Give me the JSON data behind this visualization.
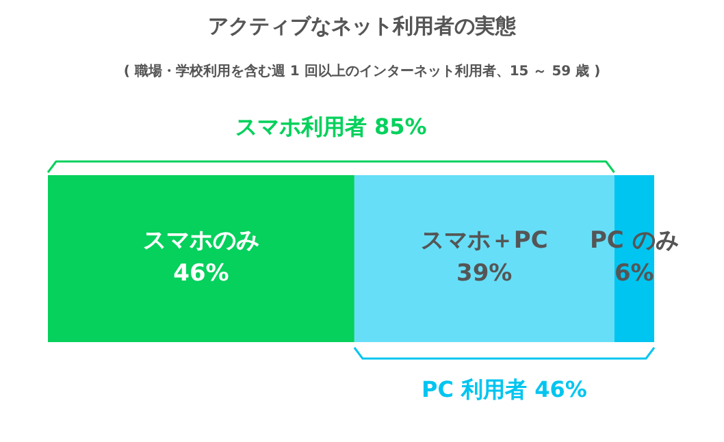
{
  "chart_data": {
    "type": "bar",
    "orientation": "horizontal",
    "stacked": true,
    "title": "アクティブなネット利用者の実態",
    "subtitle": "( 職場・学校利用を含む週 1 回以上のインターネット利用者、15 ～ 59 歳 )",
    "categories": [
      null
    ],
    "series": [
      {
        "name": "スマホのみ",
        "color": "#05d15c",
        "values": [
          46
        ],
        "value_labels": [
          "46%"
        ]
      },
      {
        "name": "スマホ＋PC",
        "color": "#66def8",
        "values": [
          39
        ],
        "value_labels": [
          "39%"
        ]
      },
      {
        "name": "PC のみ",
        "color": "#00c5f0",
        "values": [
          6
        ],
        "value_labels": [
          "6%"
        ]
      }
    ],
    "annotations": [
      "スマホ利用者 85%",
      "PC 利用者 46%"
    ]
  }
}
